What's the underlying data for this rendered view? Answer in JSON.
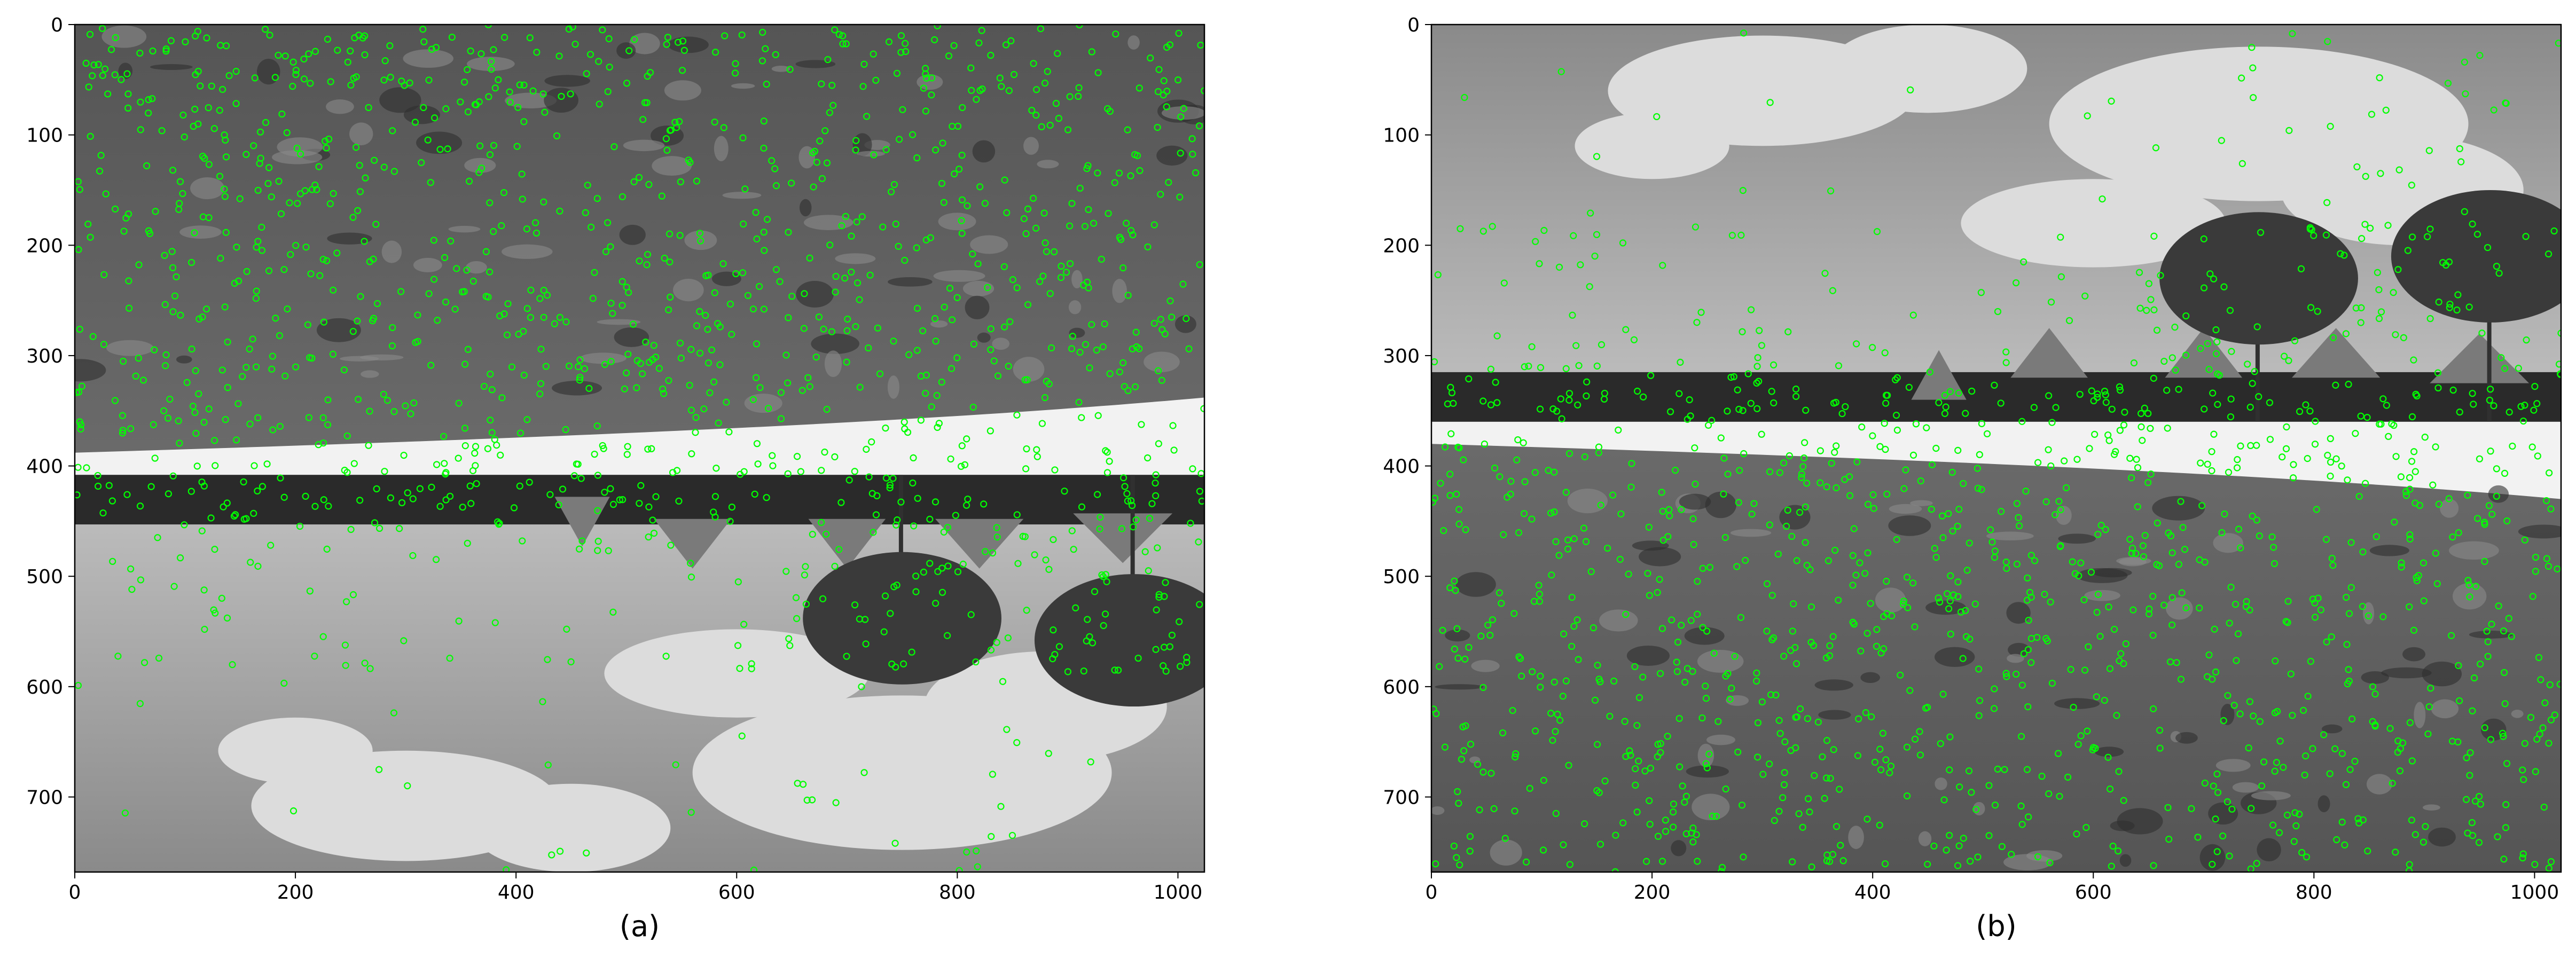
{
  "figure": {
    "panels": [
      {
        "caption": "(a)",
        "scene": "flipped",
        "x_ticks": [
          "0",
          "200",
          "400",
          "600",
          "800",
          "1000"
        ],
        "y_ticks": [
          "0",
          "100",
          "200",
          "300",
          "400",
          "500",
          "600",
          "700"
        ],
        "x_range": [
          0,
          1024
        ],
        "y_range": [
          0,
          768
        ]
      },
      {
        "caption": "(b)",
        "scene": "upright",
        "x_ticks": [
          "0",
          "200",
          "400",
          "600",
          "800",
          "1000"
        ],
        "y_ticks": [
          "0",
          "100",
          "200",
          "300",
          "400",
          "500",
          "600",
          "700"
        ],
        "x_range": [
          0,
          1024
        ],
        "y_range": [
          0,
          768
        ]
      }
    ],
    "keypoint_color": "#00ff00",
    "keypoint_marker": "keypoint-circle-icon"
  }
}
